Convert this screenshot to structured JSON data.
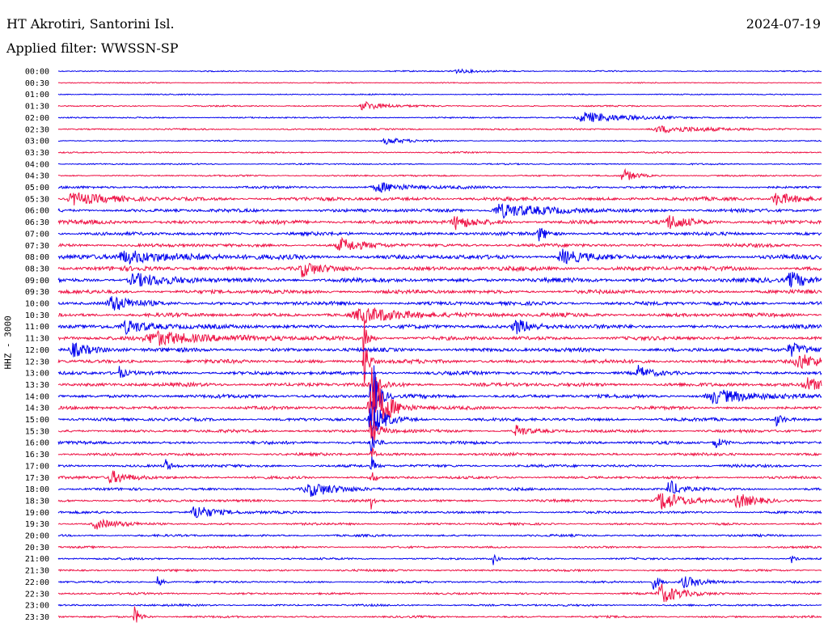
{
  "header": {
    "station": "HT Akrotiri, Santorini Isl.",
    "filter": "Applied filter: WWSSN-SP",
    "date": "2024-07-19"
  },
  "chart_data": {
    "type": "line",
    "title": "HT Akrotiri, Santorini Isl.",
    "subtitle": "Applied filter: WWSSN-SP",
    "date": "2024-07-19",
    "ylabel": "HHZ - 3000",
    "rows": [
      "00:00",
      "00:30",
      "01:00",
      "01:30",
      "02:00",
      "02:30",
      "03:00",
      "03:30",
      "04:00",
      "04:30",
      "05:00",
      "05:30",
      "06:00",
      "06:30",
      "07:00",
      "07:30",
      "08:00",
      "08:30",
      "09:00",
      "09:30",
      "10:00",
      "10:30",
      "11:00",
      "11:30",
      "12:00",
      "12:30",
      "13:00",
      "13:30",
      "14:00",
      "14:30",
      "15:00",
      "15:30",
      "16:00",
      "16:30",
      "17:00",
      "17:30",
      "18:00",
      "18:30",
      "19:00",
      "19:30",
      "20:00",
      "20:30",
      "21:00",
      "21:30",
      "22:00",
      "22:30",
      "23:00",
      "23:30"
    ],
    "colors": [
      "#0000ee",
      "#ee1144"
    ],
    "noise_level": [
      0.6,
      0.5,
      0.6,
      0.7,
      0.7,
      0.8,
      0.6,
      0.7,
      0.7,
      0.8,
      1.2,
      1.8,
      1.7,
      2.0,
      1.7,
      1.7,
      2.2,
      2.2,
      2.2,
      1.9,
      1.9,
      1.9,
      1.9,
      1.9,
      1.9,
      1.9,
      1.8,
      1.9,
      1.8,
      1.6,
      1.6,
      1.5,
      1.5,
      1.4,
      1.4,
      1.3,
      1.3,
      1.3,
      1.2,
      1.1,
      1.1,
      1.0,
      1.0,
      1.0,
      1.0,
      1.0,
      1.0,
      1.0
    ],
    "events": [
      {
        "row": 0,
        "time": 0.52,
        "amp": 2.5,
        "dur": 0.025
      },
      {
        "row": 3,
        "time": 0.4,
        "amp": 6,
        "dur": 0.02
      },
      {
        "row": 4,
        "time": 0.69,
        "amp": 7,
        "dur": 0.04
      },
      {
        "row": 5,
        "time": 0.79,
        "amp": 4,
        "dur": 0.05
      },
      {
        "row": 6,
        "time": 0.43,
        "amp": 4,
        "dur": 0.02
      },
      {
        "row": 9,
        "time": 0.74,
        "amp": 8,
        "dur": 0.012
      },
      {
        "row": 10,
        "time": 0.42,
        "amp": 6,
        "dur": 0.03
      },
      {
        "row": 11,
        "time": 0.02,
        "amp": 8,
        "dur": 0.03
      },
      {
        "row": 11,
        "time": 0.94,
        "amp": 8,
        "dur": 0.02
      },
      {
        "row": 12,
        "time": 0.58,
        "amp": 9,
        "dur": 0.04
      },
      {
        "row": 13,
        "time": 0.52,
        "amp": 8,
        "dur": 0.015
      },
      {
        "row": 13,
        "time": 0.8,
        "amp": 8,
        "dur": 0.02
      },
      {
        "row": 14,
        "time": 0.63,
        "amp": 9,
        "dur": 0.008
      },
      {
        "row": 15,
        "time": 0.37,
        "amp": 8,
        "dur": 0.02
      },
      {
        "row": 16,
        "time": 0.09,
        "amp": 8,
        "dur": 0.05
      },
      {
        "row": 16,
        "time": 0.66,
        "amp": 9,
        "dur": 0.02
      },
      {
        "row": 17,
        "time": 0.32,
        "amp": 9,
        "dur": 0.015
      },
      {
        "row": 18,
        "time": 0.1,
        "amp": 8,
        "dur": 0.03
      },
      {
        "row": 18,
        "time": 0.96,
        "amp": 10,
        "dur": 0.02
      },
      {
        "row": 20,
        "time": 0.07,
        "amp": 9,
        "dur": 0.02
      },
      {
        "row": 21,
        "time": 0.4,
        "amp": 8,
        "dur": 0.05
      },
      {
        "row": 22,
        "time": 0.09,
        "amp": 8,
        "dur": 0.03
      },
      {
        "row": 22,
        "time": 0.6,
        "amp": 9,
        "dur": 0.02
      },
      {
        "row": 23,
        "time": 0.13,
        "amp": 8,
        "dur": 0.06
      },
      {
        "row": 23,
        "time": 0.4,
        "amp": 30,
        "dur": 0.004
      },
      {
        "row": 24,
        "time": 0.02,
        "amp": 8,
        "dur": 0.02
      },
      {
        "row": 24,
        "time": 0.96,
        "amp": 8,
        "dur": 0.02
      },
      {
        "row": 25,
        "time": 0.4,
        "amp": 40,
        "dur": 0.004
      },
      {
        "row": 25,
        "time": 0.97,
        "amp": 9,
        "dur": 0.02
      },
      {
        "row": 26,
        "time": 0.08,
        "amp": 8,
        "dur": 0.005
      },
      {
        "row": 26,
        "time": 0.76,
        "amp": 8,
        "dur": 0.01
      },
      {
        "row": 27,
        "time": 0.41,
        "amp": 22,
        "dur": 0.008
      },
      {
        "row": 27,
        "time": 0.98,
        "amp": 9,
        "dur": 0.02
      },
      {
        "row": 28,
        "time": 0.41,
        "amp": 60,
        "dur": 0.006
      },
      {
        "row": 28,
        "time": 0.86,
        "amp": 8,
        "dur": 0.04
      },
      {
        "row": 29,
        "time": 0.41,
        "amp": 45,
        "dur": 0.015
      },
      {
        "row": 30,
        "time": 0.41,
        "amp": 25,
        "dur": 0.012
      },
      {
        "row": 30,
        "time": 0.94,
        "amp": 9,
        "dur": 0.006
      },
      {
        "row": 31,
        "time": 0.41,
        "amp": 18,
        "dur": 0.008
      },
      {
        "row": 31,
        "time": 0.6,
        "amp": 8,
        "dur": 0.01
      },
      {
        "row": 32,
        "time": 0.41,
        "amp": 14,
        "dur": 0.005
      },
      {
        "row": 32,
        "time": 0.86,
        "amp": 7,
        "dur": 0.01
      },
      {
        "row": 33,
        "time": 0.41,
        "amp": 14,
        "dur": 0.003
      },
      {
        "row": 34,
        "time": 0.14,
        "amp": 9,
        "dur": 0.005
      },
      {
        "row": 34,
        "time": 0.41,
        "amp": 14,
        "dur": 0.003
      },
      {
        "row": 35,
        "time": 0.07,
        "amp": 8,
        "dur": 0.02
      },
      {
        "row": 35,
        "time": 0.41,
        "amp": 14,
        "dur": 0.003
      },
      {
        "row": 36,
        "time": 0.33,
        "amp": 8,
        "dur": 0.03
      },
      {
        "row": 36,
        "time": 0.8,
        "amp": 12,
        "dur": 0.01
      },
      {
        "row": 37,
        "time": 0.41,
        "amp": 10,
        "dur": 0.003
      },
      {
        "row": 37,
        "time": 0.79,
        "amp": 12,
        "dur": 0.025
      },
      {
        "row": 37,
        "time": 0.89,
        "amp": 9,
        "dur": 0.015
      },
      {
        "row": 38,
        "time": 0.18,
        "amp": 9,
        "dur": 0.02
      },
      {
        "row": 39,
        "time": 0.05,
        "amp": 6,
        "dur": 0.02
      },
      {
        "row": 42,
        "time": 0.57,
        "amp": 8,
        "dur": 0.003
      },
      {
        "row": 42,
        "time": 0.96,
        "amp": 6,
        "dur": 0.004
      },
      {
        "row": 44,
        "time": 0.13,
        "amp": 7,
        "dur": 0.005
      },
      {
        "row": 44,
        "time": 0.78,
        "amp": 10,
        "dur": 0.006
      },
      {
        "row": 44,
        "time": 0.82,
        "amp": 7,
        "dur": 0.02
      },
      {
        "row": 45,
        "time": 0.79,
        "amp": 12,
        "dur": 0.02
      },
      {
        "row": 47,
        "time": 0.1,
        "amp": 12,
        "dur": 0.006
      }
    ]
  }
}
